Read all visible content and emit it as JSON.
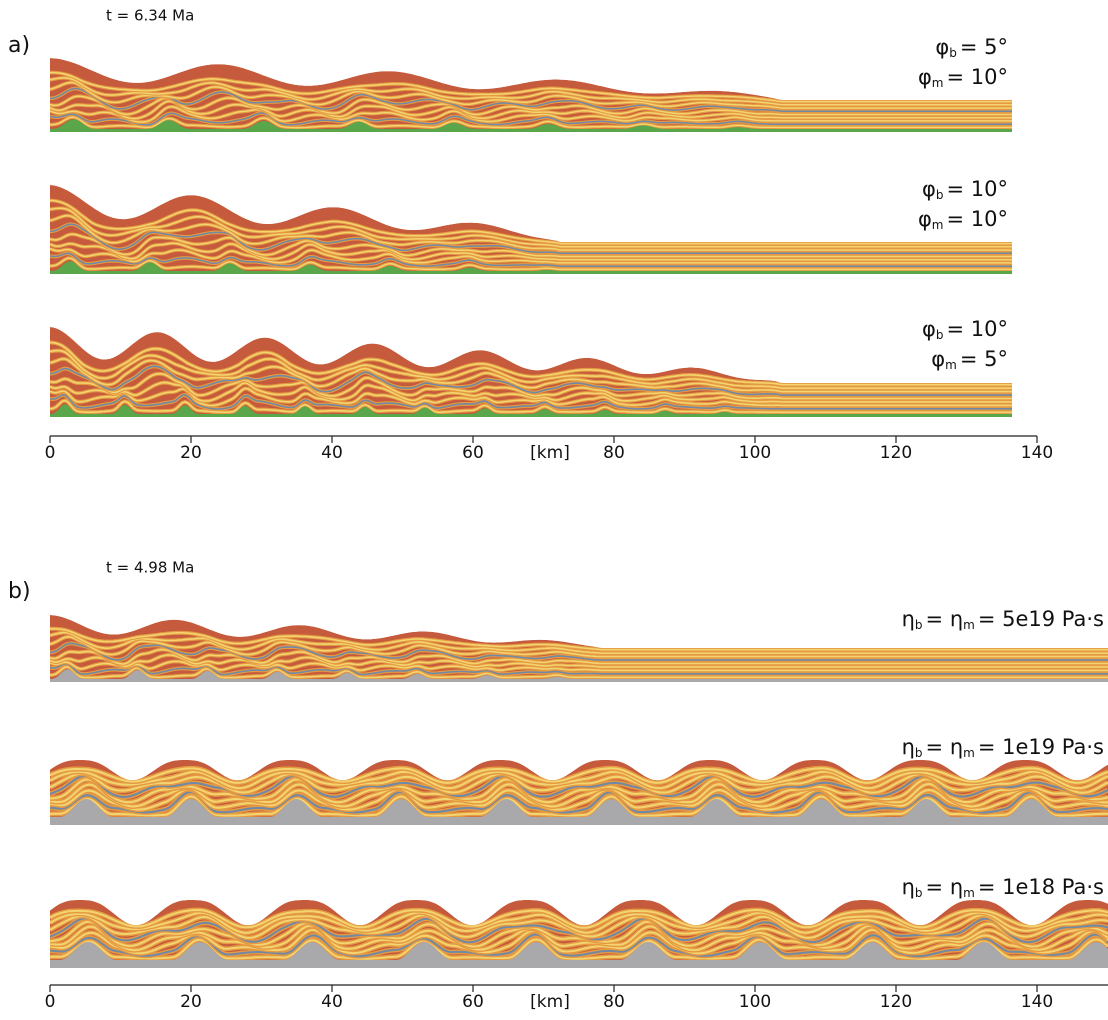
{
  "panels": [
    {
      "label": "a)",
      "time": "t = 6.34 Ma",
      "models": [
        {
          "params": [
            [
              "φ",
              "b",
              "= 5°"
            ],
            [
              "φ",
              "m",
              "= 10°"
            ]
          ]
        },
        {
          "params": [
            [
              "φ",
              "b",
              "= 10°"
            ],
            [
              "φ",
              "m",
              "= 10°"
            ]
          ]
        },
        {
          "params": [
            [
              "φ",
              "b",
              "= 10°"
            ],
            [
              "φ",
              "m",
              "= 5°"
            ]
          ]
        }
      ],
      "axis": {
        "xlim": [
          0,
          140
        ],
        "xticks": [
          0,
          20,
          40,
          60,
          80,
          100,
          120,
          140
        ],
        "xlabel": "[km]"
      }
    },
    {
      "label": "b)",
      "time": "t = 4.98 Ma",
      "models": [
        {
          "params": [
            [
              "η",
              "b",
              "= η",
              "m",
              "= 5e19 Pa·s"
            ]
          ]
        },
        {
          "params": [
            [
              "η",
              "b",
              "= η",
              "m",
              "= 1e19 Pa·s"
            ]
          ]
        },
        {
          "params": [
            [
              "η",
              "b",
              "= η",
              "m",
              "= 1e18 Pa·s"
            ]
          ]
        }
      ],
      "axis": {
        "xlim": [
          0,
          150
        ],
        "xticks": [
          0,
          20,
          40,
          60,
          80,
          100,
          120,
          140
        ],
        "xlabel": "[km]"
      }
    }
  ]
}
